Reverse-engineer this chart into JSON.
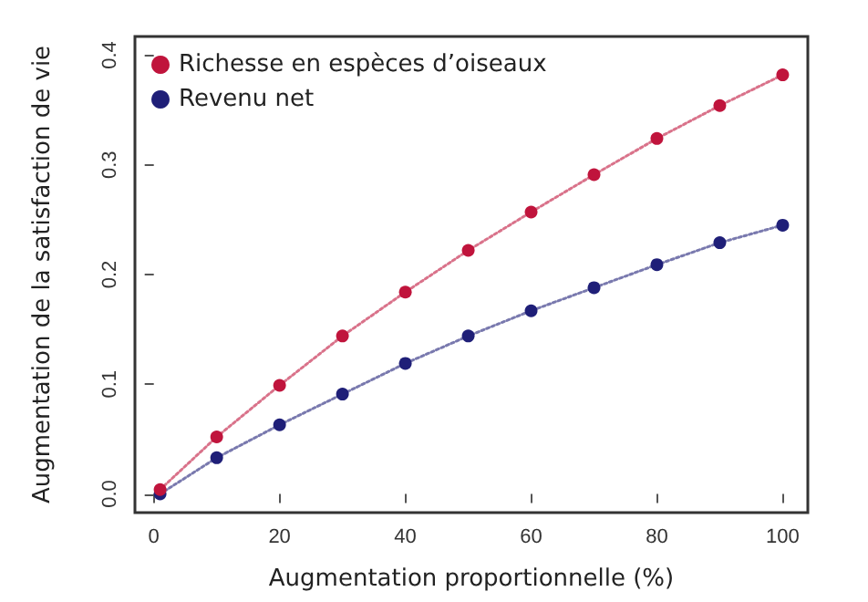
{
  "chart_data": {
    "type": "line",
    "xlabel": "Augmentation proportionnelle (%)",
    "ylabel": "Augmentation de la satisfaction de vie",
    "x": [
      1,
      10,
      20,
      30,
      40,
      50,
      60,
      70,
      80,
      90,
      100
    ],
    "series": [
      {
        "name": "Richesse en espèces d’oiseaux",
        "color": "#c0143c",
        "values": [
          0.004,
          0.052,
          0.099,
          0.144,
          0.184,
          0.222,
          0.257,
          0.291,
          0.324,
          0.354,
          0.382
        ]
      },
      {
        "name": "Revenu net",
        "color": "#1f1f78",
        "values": [
          0.0,
          0.033,
          0.063,
          0.091,
          0.119,
          0.144,
          0.167,
          0.188,
          0.209,
          0.229,
          0.245
        ]
      }
    ],
    "xlim": [
      -3,
      104
    ],
    "xticks": [
      0,
      20,
      40,
      60,
      80,
      100
    ],
    "ylim": [
      -0.017,
      0.417
    ],
    "yticks": [
      {
        "value": 0,
        "label": "0.0"
      },
      0.1,
      0.2,
      0.3,
      0.4
    ],
    "grid": false,
    "legend": "top left",
    "marker": "circle",
    "line_style": "dotted"
  }
}
